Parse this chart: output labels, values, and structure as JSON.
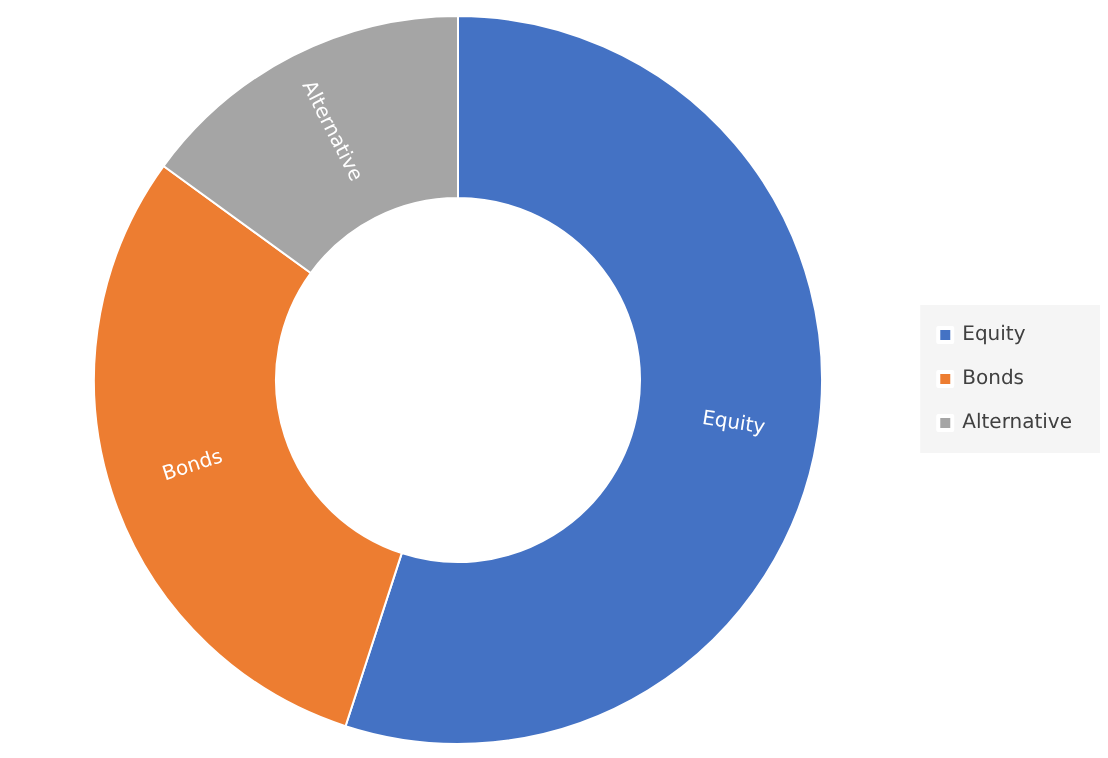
{
  "chart_data": {
    "type": "donut",
    "categories": [
      "Equity",
      "Bonds",
      "Alternative"
    ],
    "values": [
      55,
      30,
      15
    ],
    "colors": [
      "#4472c4",
      "#ed7d31",
      "#a5a5a5"
    ],
    "legend": "right"
  }
}
